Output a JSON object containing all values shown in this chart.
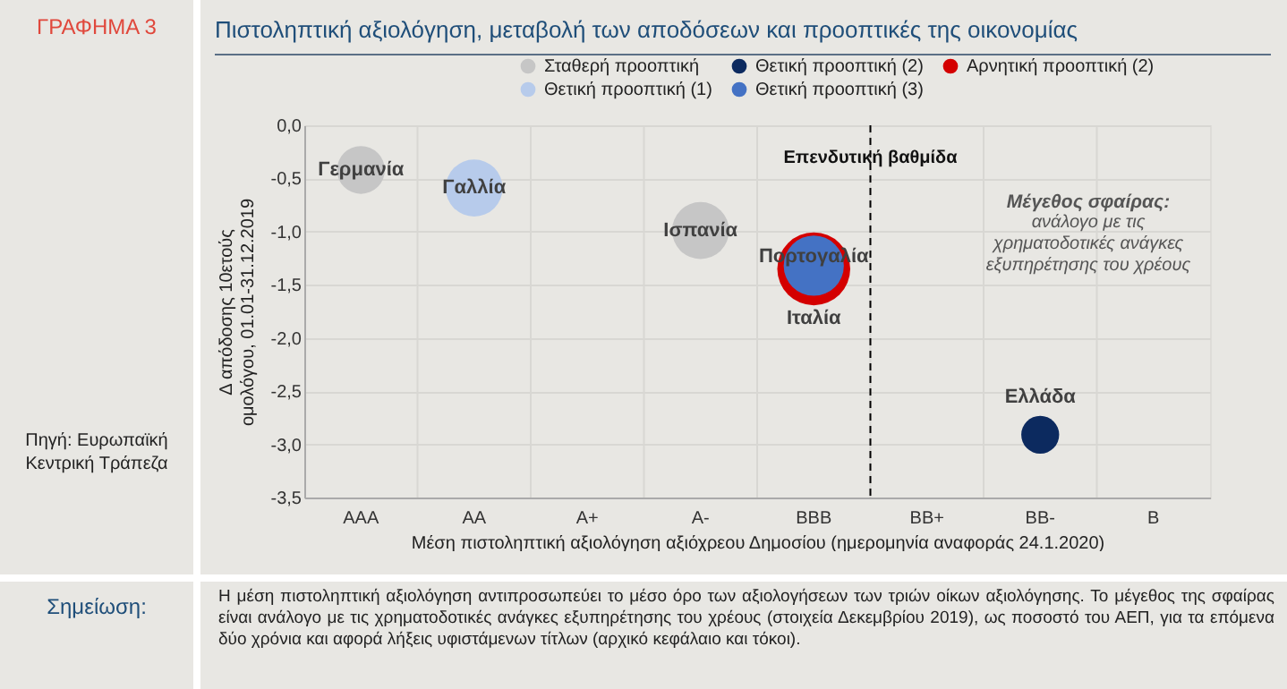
{
  "chart_data": {
    "type": "bubble",
    "title": "Πιστοληπτική αξιολόγηση, μεταβολή των αποδόσεων και προοπτικές της οικονομίας",
    "xlabel": "Μέση πιστοληπτική αξιολόγηση αξιόχρεου Δημοσίου (ημερομηνία αναφοράς 24.1.2020)",
    "ylabel": "Δ απόδοσης 10ετούς ομολόγου, 01.01-31.12.2019",
    "categories": [
      "AAA",
      "AA",
      "A+",
      "A-",
      "BBB",
      "BB+",
      "BB-",
      "B"
    ],
    "ylim": [
      -3.5,
      0
    ],
    "yticks": [
      {
        "value": -3.5,
        "label": "-3,5"
      },
      {
        "value": -3,
        "label": "-3,0"
      },
      {
        "value": -2.5,
        "label": "-2,5"
      },
      {
        "value": -2,
        "label": "-2,0"
      },
      {
        "value": -1.5,
        "label": "-1,5"
      },
      {
        "value": -1,
        "label": "-1,0"
      },
      {
        "value": -0.5,
        "label": "-0,5"
      },
      {
        "value": 0,
        "label": "0,0"
      }
    ],
    "grid": true,
    "legend": "top",
    "series": [
      {
        "name": "Σταθερή προοπτική",
        "color": "#c6c6c6",
        "x": [
          "AAA",
          "A-"
        ],
        "values": [
          -0.42,
          -0.99
        ],
        "sizes": [
          0.43,
          0.61
        ]
      },
      {
        "name": "Θετική προοπτική (2)",
        "color": "#0c2a5f",
        "x": [
          "BB-"
        ],
        "values": [
          -2.91
        ],
        "sizes": [
          0.27
        ]
      },
      {
        "name": "Αρνητική προοπτική (2)",
        "color": "#d40000",
        "x": [
          "BBB"
        ],
        "values": [
          -1.35
        ],
        "sizes": [
          1
        ]
      },
      {
        "name": "Θετική προοπτική (1)",
        "color": "#b7cbeb",
        "x": [
          "AA"
        ],
        "values": [
          -0.59
        ],
        "sizes": [
          0.61
        ]
      },
      {
        "name": "Θετική προοπτική (3)",
        "color": "#4472c4",
        "x": [
          "BBB"
        ],
        "values": [
          -1.32
        ],
        "sizes": [
          0.68
        ]
      }
    ],
    "ref_lines": [
      {
        "axis": "x",
        "value": "BBB",
        "label": "Επενδυτική βαθμίδα",
        "color": "#000000",
        "line_style": "dashed"
      }
    ],
    "annotations": [
      "ΓΡΑΦΗΜΑ 3",
      "Πηγή: Ευρωπαϊκή Κεντρική Τράπεζα",
      "Μέγεθος σφαίρας:",
      "ανάλογο με τις χρηματοδοτικές ανάγκες εξυπηρέτησης του χρέους",
      "Σημείωση:",
      "Η μέση πιστοληπτική αξιολόγηση αντιπροσωπεύει το μέσο όρο των αξιολογήσεων των τριών οίκων αξιολόγησης. Το μέγεθος της σφαίρας είναι ανάλογο με τις χρηματοδοτικές ανάγκες εξυπηρέτησης του χρέους (στοιχεία Δεκεμβρίου 2019), ως ποσοστό του ΑΕΠ, για τα επόμενα δύο χρόνια και αφορά λήξεις υφιστάμενων τίτλων (αρχικό κεφάλαιο και τόκοι).",
      {
        "text": "Γερμανία",
        "x": "AAA",
        "y": -0.42
      },
      {
        "text": "Γαλλία",
        "x": "AA",
        "y": -0.59
      },
      {
        "text": "Ισπανία",
        "x": "A-",
        "y": -0.99
      },
      {
        "text": "Πορτογαλία",
        "x": "BBB",
        "y": -1.24
      },
      "Ιταλία",
      "Ελλάδα"
    ]
  }
}
